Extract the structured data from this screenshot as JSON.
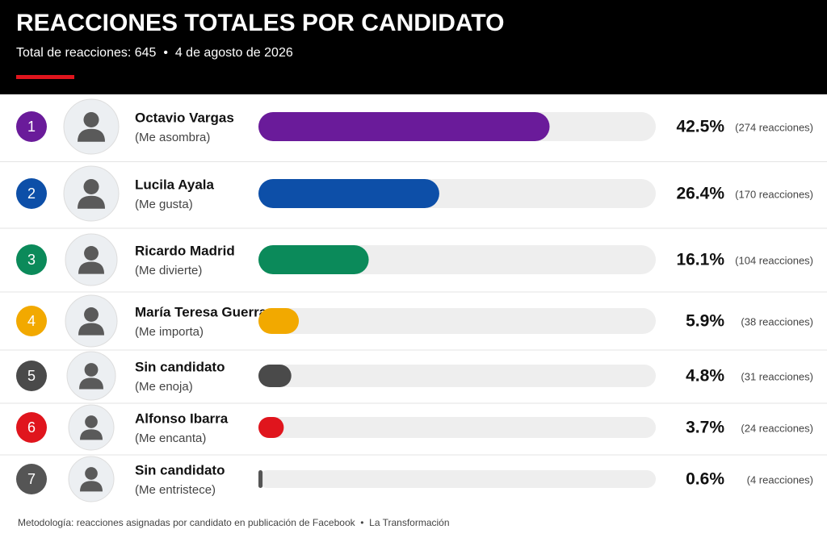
{
  "chart_data": {
    "type": "bar",
    "title": "REACCIONES TOTALES POR CANDIDATO",
    "subtitle": "Total de reacciones: 645  •  4 de agosto de 2026",
    "ranks": [
      "1",
      "2",
      "3",
      "4",
      "5",
      "6",
      "7"
    ],
    "categories": [
      "Octavio Vargas",
      "Lucila Ayala",
      "Ricardo Madrid",
      "María Teresa Guerra",
      "Sin candidato",
      "Alfonso Ibarra",
      "Sin candidato"
    ],
    "reactions": [
      "(Me asombra)",
      "(Me gusta)",
      "(Me divierte)",
      "(Me importa)",
      "(Me enoja)",
      "(Me encanta)",
      "(Me entristece)"
    ],
    "values": [
      42.5,
      26.4,
      16.1,
      5.9,
      4.8,
      3.7,
      0.6
    ],
    "value_labels": [
      "42.5%",
      "26.4%",
      "16.1%",
      "5.9%",
      "4.8%",
      "3.7%",
      "0.6%"
    ],
    "count_labels": [
      "(274 reacciones)",
      "(170 reacciones)",
      "(104 reacciones)",
      "(38 reacciones)",
      "(31 reacciones)",
      "(24 reacciones)",
      "(4 reacciones)"
    ],
    "colors": [
      "#6a1b9a",
      "#0d4fa8",
      "#0b8a5a",
      "#f2a900",
      "#4a4a4a",
      "#e0151d",
      "#555555"
    ],
    "xlim": [
      0,
      58
    ],
    "footer": "Metodología: reacciones asignadas por candidato en publicación de Facebook  •  La Transformación"
  }
}
